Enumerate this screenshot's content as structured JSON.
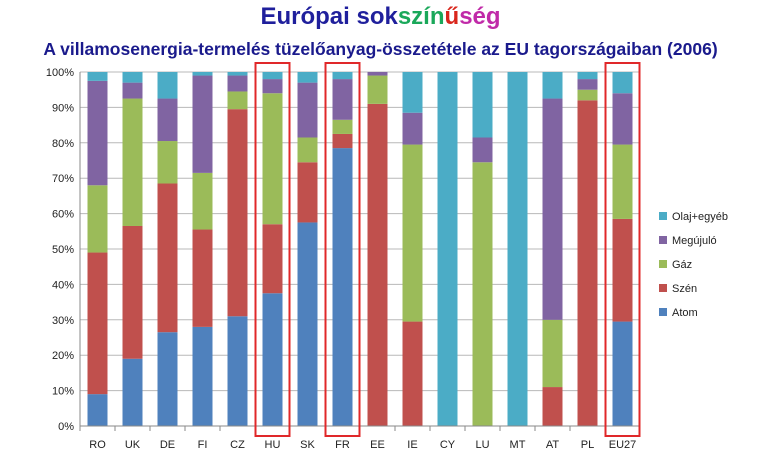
{
  "title": {
    "parts": [
      {
        "text": "Európai sok",
        "color": "#1f1f9c"
      },
      {
        "text": "szín",
        "color": "#1aa85a"
      },
      {
        "text": "ű",
        "color": "#d9261c"
      },
      {
        "text": "ség",
        "color": "#c02aa8"
      }
    ]
  },
  "subtitle": "A villamosenergia-termelés tüzelőanyag-összetétele az EU tagországaiban (2006)",
  "chart_data": {
    "type": "bar",
    "stacked": true,
    "categories": [
      "RO",
      "UK",
      "DE",
      "FI",
      "CZ",
      "HU",
      "SK",
      "FR",
      "EE",
      "IE",
      "CY",
      "LU",
      "MT",
      "AT",
      "PL",
      "EU27"
    ],
    "series": [
      {
        "name": "Atom",
        "color": "#4f81bd",
        "values": [
          9,
          19,
          26.5,
          28,
          31,
          37.5,
          57.5,
          78.5,
          0,
          0,
          0,
          0,
          0,
          0,
          0,
          29.5
        ]
      },
      {
        "name": "Szén",
        "color": "#c0504d",
        "values": [
          40,
          37.5,
          42,
          27.5,
          58.5,
          19.5,
          17,
          4,
          91,
          29.5,
          0,
          0,
          0,
          11,
          92,
          29
        ]
      },
      {
        "name": "Gáz",
        "color": "#9bbb59",
        "values": [
          19,
          36,
          12,
          16,
          5,
          37,
          7,
          4,
          8,
          50,
          0,
          74.5,
          0,
          19,
          3,
          21
        ]
      },
      {
        "name": "Megújuló",
        "color": "#8064a2",
        "values": [
          29.5,
          4.5,
          12,
          27.5,
          4.5,
          4,
          15.5,
          11.5,
          1,
          9,
          0,
          7,
          0,
          62.5,
          3,
          14.5
        ]
      },
      {
        "name": "Olaj+egyéb",
        "color": "#4bacc6",
        "values": [
          2.5,
          3,
          7.5,
          1,
          1,
          2,
          3,
          2,
          0,
          11.5,
          100,
          18.5,
          100,
          7.5,
          2,
          6
        ]
      }
    ],
    "yticks": [
      "0%",
      "10%",
      "20%",
      "30%",
      "40%",
      "50%",
      "60%",
      "70%",
      "80%",
      "90%",
      "100%"
    ],
    "ylim": [
      0,
      100
    ],
    "grid": true,
    "legend_position": "right",
    "highlighted_categories": [
      "HU",
      "FR",
      "EU27"
    ],
    "highlight_color": "#e0282a"
  }
}
